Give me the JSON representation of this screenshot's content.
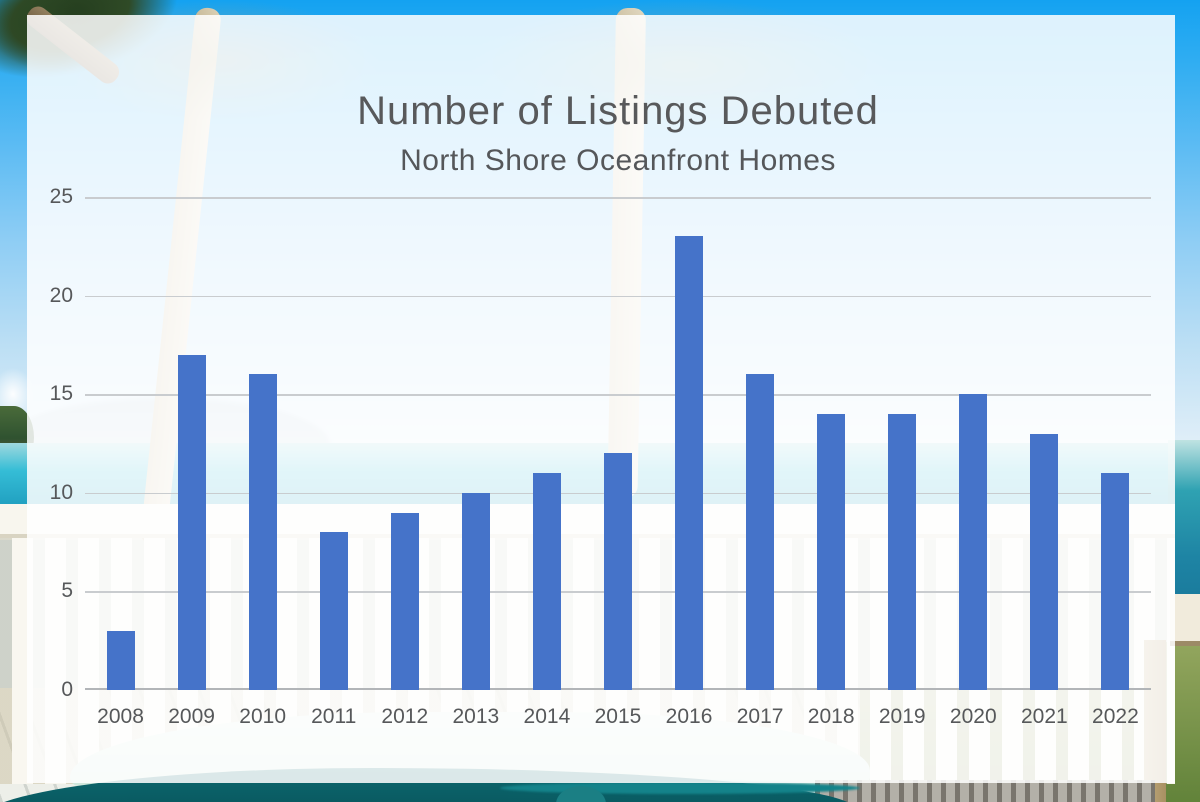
{
  "chart_data": {
    "type": "bar",
    "title": "Number of Listings Debuted",
    "subtitle": "North Shore Oceanfront Homes",
    "categories": [
      "2008",
      "2009",
      "2010",
      "2011",
      "2012",
      "2013",
      "2014",
      "2015",
      "2016",
      "2017",
      "2018",
      "2019",
      "2020",
      "2021",
      "2022"
    ],
    "values": [
      3,
      17,
      16,
      8,
      9,
      10,
      11,
      12,
      23,
      16,
      14,
      14,
      15,
      13,
      11
    ],
    "xlabel": "",
    "ylabel": "",
    "ylim": [
      0,
      25
    ],
    "yticks": [
      0,
      5,
      10,
      15,
      20,
      25
    ],
    "grid": true,
    "legend": "none",
    "bar_color": "#4573c9",
    "gridline_color": "#c9cccf",
    "axis_line_color": "#b2b5b8",
    "tick_label_color": "#56585a",
    "title_color": "#58595b"
  }
}
